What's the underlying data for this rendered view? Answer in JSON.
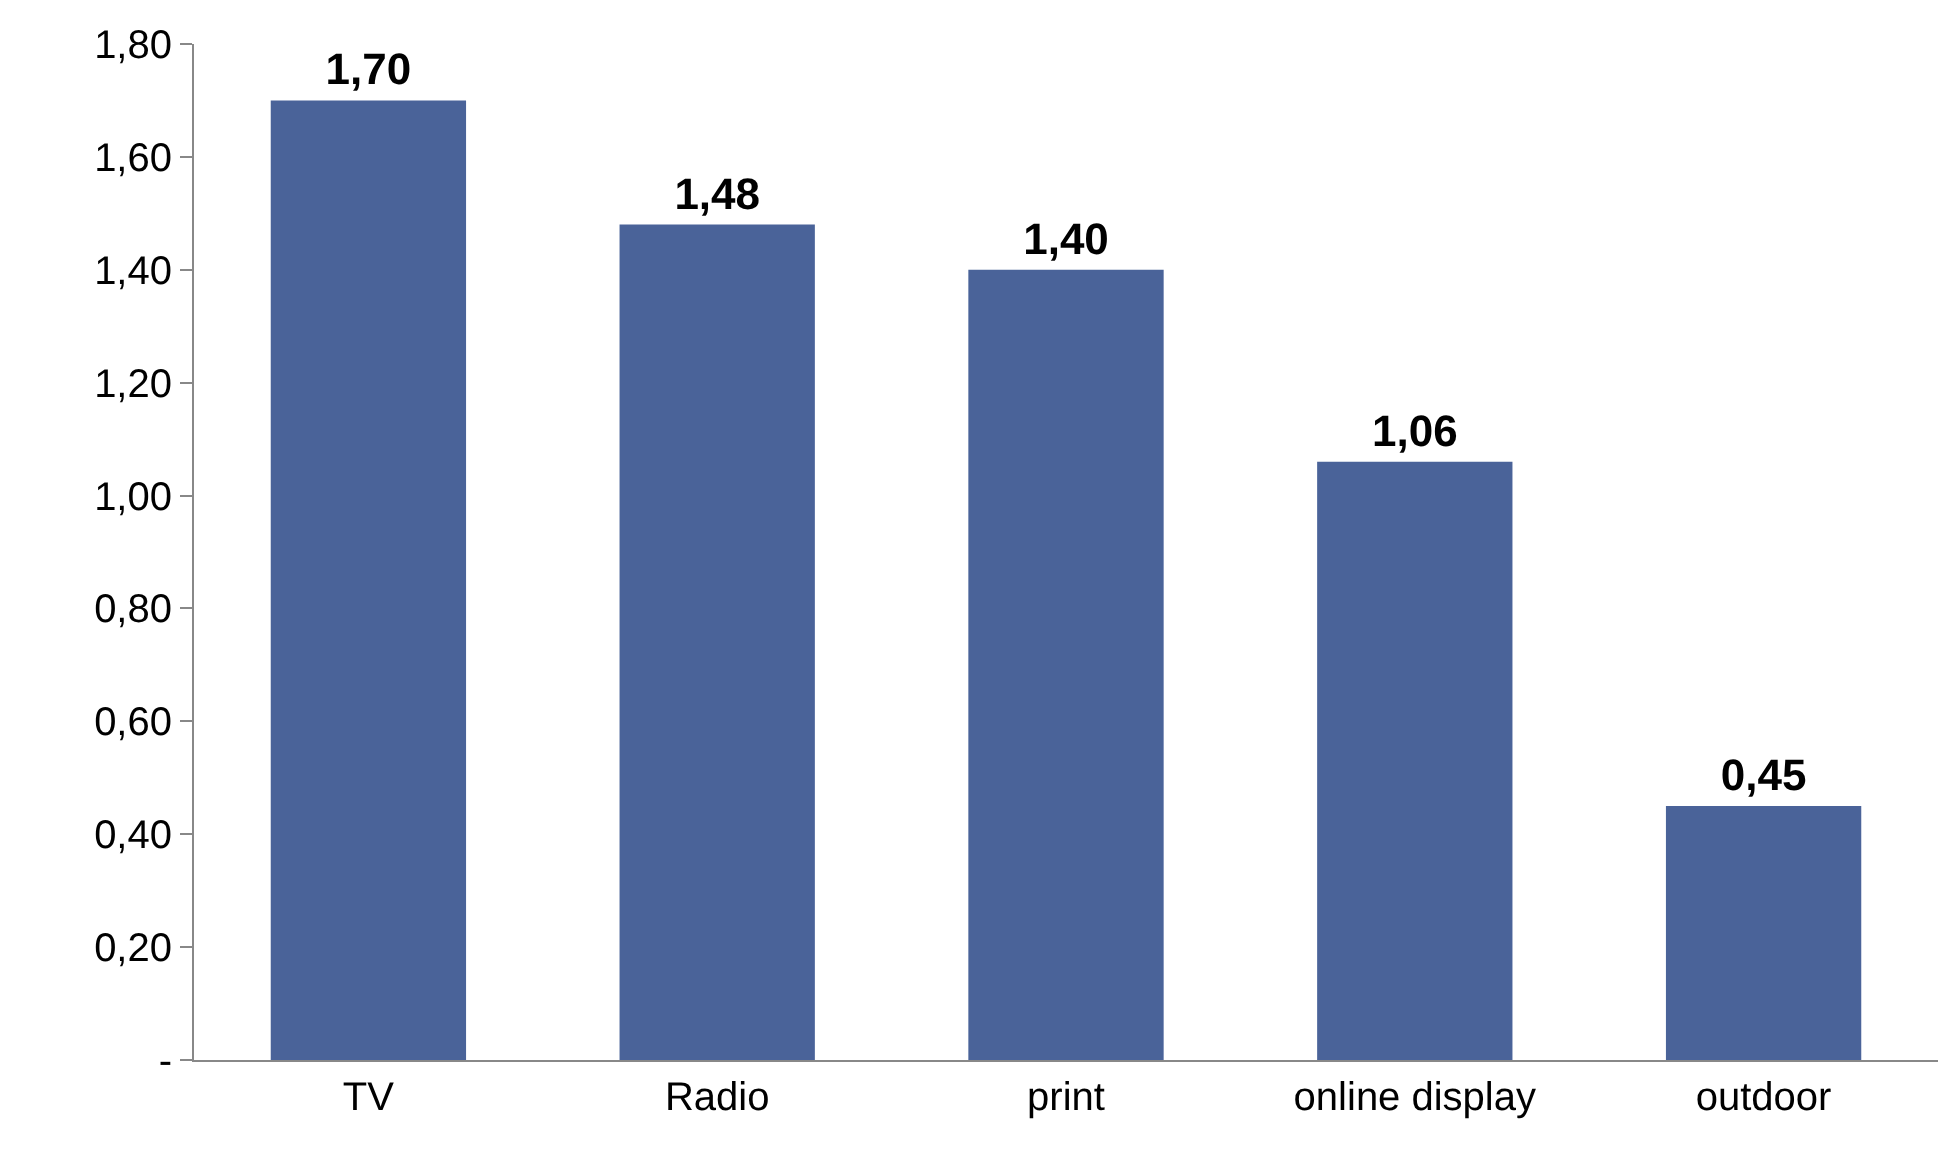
{
  "chart_data": {
    "type": "bar",
    "categories": [
      "TV",
      "Radio",
      "print",
      "online display",
      "outdoor"
    ],
    "values": [
      1.7,
      1.48,
      1.4,
      1.06,
      0.45
    ],
    "value_labels": [
      "1,70",
      "1,48",
      "1,40",
      "1,06",
      "0,45"
    ],
    "color": "#4a6399",
    "ylim": [
      0,
      1.8
    ],
    "yticks": [
      {
        "value": 0,
        "label": "-"
      },
      {
        "value": 0.2,
        "label": "0,20"
      },
      {
        "value": 0.4,
        "label": "0,40"
      },
      {
        "value": 0.6,
        "label": "0,60"
      },
      {
        "value": 0.8,
        "label": "0,80"
      },
      {
        "value": 1.0,
        "label": "1,00"
      },
      {
        "value": 1.2,
        "label": "1,20"
      },
      {
        "value": 1.4,
        "label": "1,40"
      },
      {
        "value": 1.6,
        "label": "1,60"
      },
      {
        "value": 1.8,
        "label": "1,80"
      }
    ]
  }
}
